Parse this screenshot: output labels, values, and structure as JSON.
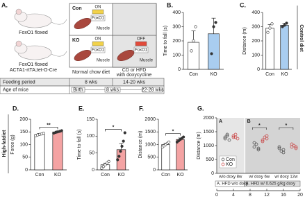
{
  "label": "A.",
  "diagram": {
    "con_label": "Con",
    "ko_label": "KO",
    "mouse_labels": [
      "FoxO1 floxed",
      "FoxO1 floxed",
      "ACTA1-rtTA;tet-O-Cre"
    ],
    "cells": [
      {
        "switch": "ON",
        "gene": "FoxO1",
        "tissue": "Muscle"
      },
      {
        "switch": "ON",
        "gene": "FoxO1",
        "tissue": "Muscle"
      },
      {
        "switch": "OFF",
        "gene": "FoxO1",
        "tissue": "Muscle"
      }
    ],
    "diet_labels": [
      "Normal chow diet",
      "CD or HFD",
      "with doxycycline"
    ],
    "table": {
      "feeding": [
        "Feeding period",
        "8 wks",
        "14-20 wks"
      ],
      "age": [
        "Age of mice",
        "Birth",
        "8 wks",
        "22-28 wks"
      ]
    }
  },
  "side_labels": {
    "control": "Control diet",
    "hfd": "High-fatdiet"
  },
  "chart_data": [
    {
      "type": "bar",
      "panel": "B.",
      "ylabel": "Time to fall (s)",
      "categories": [
        "Con",
        "KO"
      ],
      "colors": [
        "#ffffff",
        "#a9cdf0"
      ],
      "values": [
        190,
        250
      ],
      "errors": [
        80,
        110
      ],
      "points": [
        [
          130,
          200,
          300
        ],
        [
          110,
          300,
          330
        ]
      ],
      "ylim": [
        0,
        400
      ],
      "yticks": [
        0,
        100,
        200,
        300,
        400
      ]
    },
    {
      "type": "bar",
      "panel": "C.",
      "ylabel": "Distance (m)",
      "categories": [
        "Con",
        "KO"
      ],
      "colors": [
        "#ffffff",
        "#a9cdf0"
      ],
      "values": [
        290,
        310
      ],
      "errors": [
        25,
        15
      ],
      "points": [
        [
          260,
          290,
          320
        ],
        [
          300,
          310,
          325
        ]
      ],
      "ylim": [
        0,
        400
      ],
      "yticks": [
        0,
        100,
        200,
        300,
        400
      ]
    },
    {
      "type": "bar",
      "panel": "D.",
      "ylabel": "Force (g)",
      "categories": [
        "Con",
        "KO"
      ],
      "colors": [
        "#ffffff",
        "#f4a3a3"
      ],
      "values": [
        140,
        150
      ],
      "errors": [
        4,
        4
      ],
      "points": [
        [
          135,
          138,
          140,
          142,
          145
        ],
        [
          145,
          148,
          150,
          152,
          155
        ]
      ],
      "ylim": [
        0,
        200
      ],
      "yticks": [
        0,
        50,
        100,
        150,
        200
      ],
      "annotation": "**"
    },
    {
      "type": "bar",
      "panel": "E.",
      "ylabel": "Time to fall (s)",
      "categories": [
        "Con",
        "KO"
      ],
      "colors": [
        "#ffffff",
        "#f4a3a3"
      ],
      "values": [
        15,
        60
      ],
      "errors": [
        5,
        18
      ],
      "points": [
        [
          5,
          10,
          15,
          20,
          25
        ],
        [
          30,
          40,
          55,
          70,
          85,
          110
        ]
      ],
      "ylim": [
        0,
        150
      ],
      "yticks": [
        0,
        50,
        100,
        150
      ],
      "annotation": "*"
    },
    {
      "type": "bar",
      "panel": "F.",
      "ylabel": "Distance (m)",
      "categories": [
        "Con",
        "KO"
      ],
      "colors": [
        "#ffffff",
        "#f4a3a3"
      ],
      "values": [
        1000,
        1200
      ],
      "errors": [
        60,
        60
      ],
      "points": [
        [
          900,
          950,
          1000,
          1050,
          1100
        ],
        [
          1100,
          1150,
          1200,
          1250,
          1300
        ]
      ],
      "ylim": [
        0,
        2000
      ],
      "yticks": [
        0,
        500,
        1000,
        1500,
        2000
      ],
      "annotation": "*"
    },
    {
      "type": "scatter",
      "panel": "G.",
      "ylabel": "Distance (m)",
      "series": [
        {
          "name": "Con",
          "color": "#444444",
          "x": [
            2,
            2.5,
            3,
            2.5,
            2,
            9,
            9.5,
            10,
            9,
            10,
            15,
            15.5,
            16,
            15,
            16
          ],
          "values": [
            1300,
            1400,
            1200,
            1350,
            1250,
            950,
            1050,
            900,
            1100,
            850,
            900,
            800,
            850,
            950,
            750
          ]
        },
        {
          "name": "KO",
          "color": "#c83c3c",
          "x": [
            4,
            4.5,
            5,
            4.5,
            4,
            11,
            11.5,
            12,
            11,
            12,
            18,
            18.5,
            19,
            18,
            19
          ],
          "values": [
            1350,
            1300,
            1250,
            1400,
            1300,
            1200,
            1300,
            1250,
            1150,
            1350,
            950,
            1000,
            900,
            1050,
            950
          ]
        }
      ],
      "group_labels": [
        "A",
        "B"
      ],
      "subgroup_labels": [
        "w/o doxy 8w",
        "w/ doxy 6w",
        "w/ doxy 12w"
      ],
      "footer_labels": [
        "A. HFD w/o doxy",
        "B. HFD w/ 0.625 g/kg doxy"
      ],
      "annotations": [
        "*",
        "*"
      ],
      "legend": "lower left",
      "xlim": [
        0,
        20
      ],
      "xticks": [
        0,
        4,
        8,
        12,
        16,
        20
      ],
      "ylim": [
        0,
        2000
      ],
      "yticks": [
        0,
        500,
        1000,
        1500,
        2000
      ]
    }
  ]
}
